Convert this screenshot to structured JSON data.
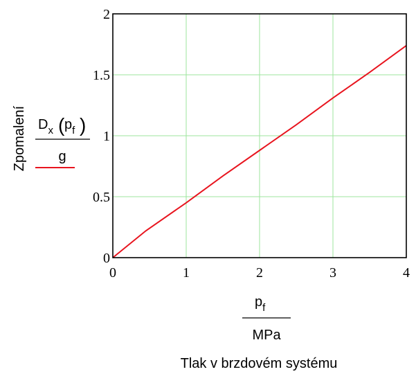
{
  "chart_data": {
    "type": "line",
    "title": "",
    "xlabel_caption": "Tlak v brzdovém systému",
    "xlabel_fraction": {
      "numerator_main": "p",
      "numerator_sub": "f",
      "denominator": "MPa"
    },
    "ylabel_caption": "Zpomalení",
    "ylabel_fraction": {
      "numerator_main": "D",
      "numerator_sub": "x",
      "arg_main": "p",
      "arg_sub": "f",
      "denominator": "g"
    },
    "xlim": [
      0,
      4
    ],
    "ylim": [
      0,
      2
    ],
    "x_ticks": [
      "0",
      "1",
      "2",
      "3",
      "4"
    ],
    "y_ticks": [
      "0",
      "0.5",
      "1",
      "1.5",
      "2"
    ],
    "grid": true,
    "series": [
      {
        "color": "#e8141e",
        "x": [
          0,
          0.45,
          1,
          1.5,
          2,
          2.5,
          3,
          3.5,
          4
        ],
        "y": [
          0,
          0.22,
          0.45,
          0.67,
          0.88,
          1.09,
          1.31,
          1.52,
          1.74
        ]
      }
    ]
  },
  "colors": {
    "grid": "#9ce69c",
    "frame": "#000000"
  }
}
